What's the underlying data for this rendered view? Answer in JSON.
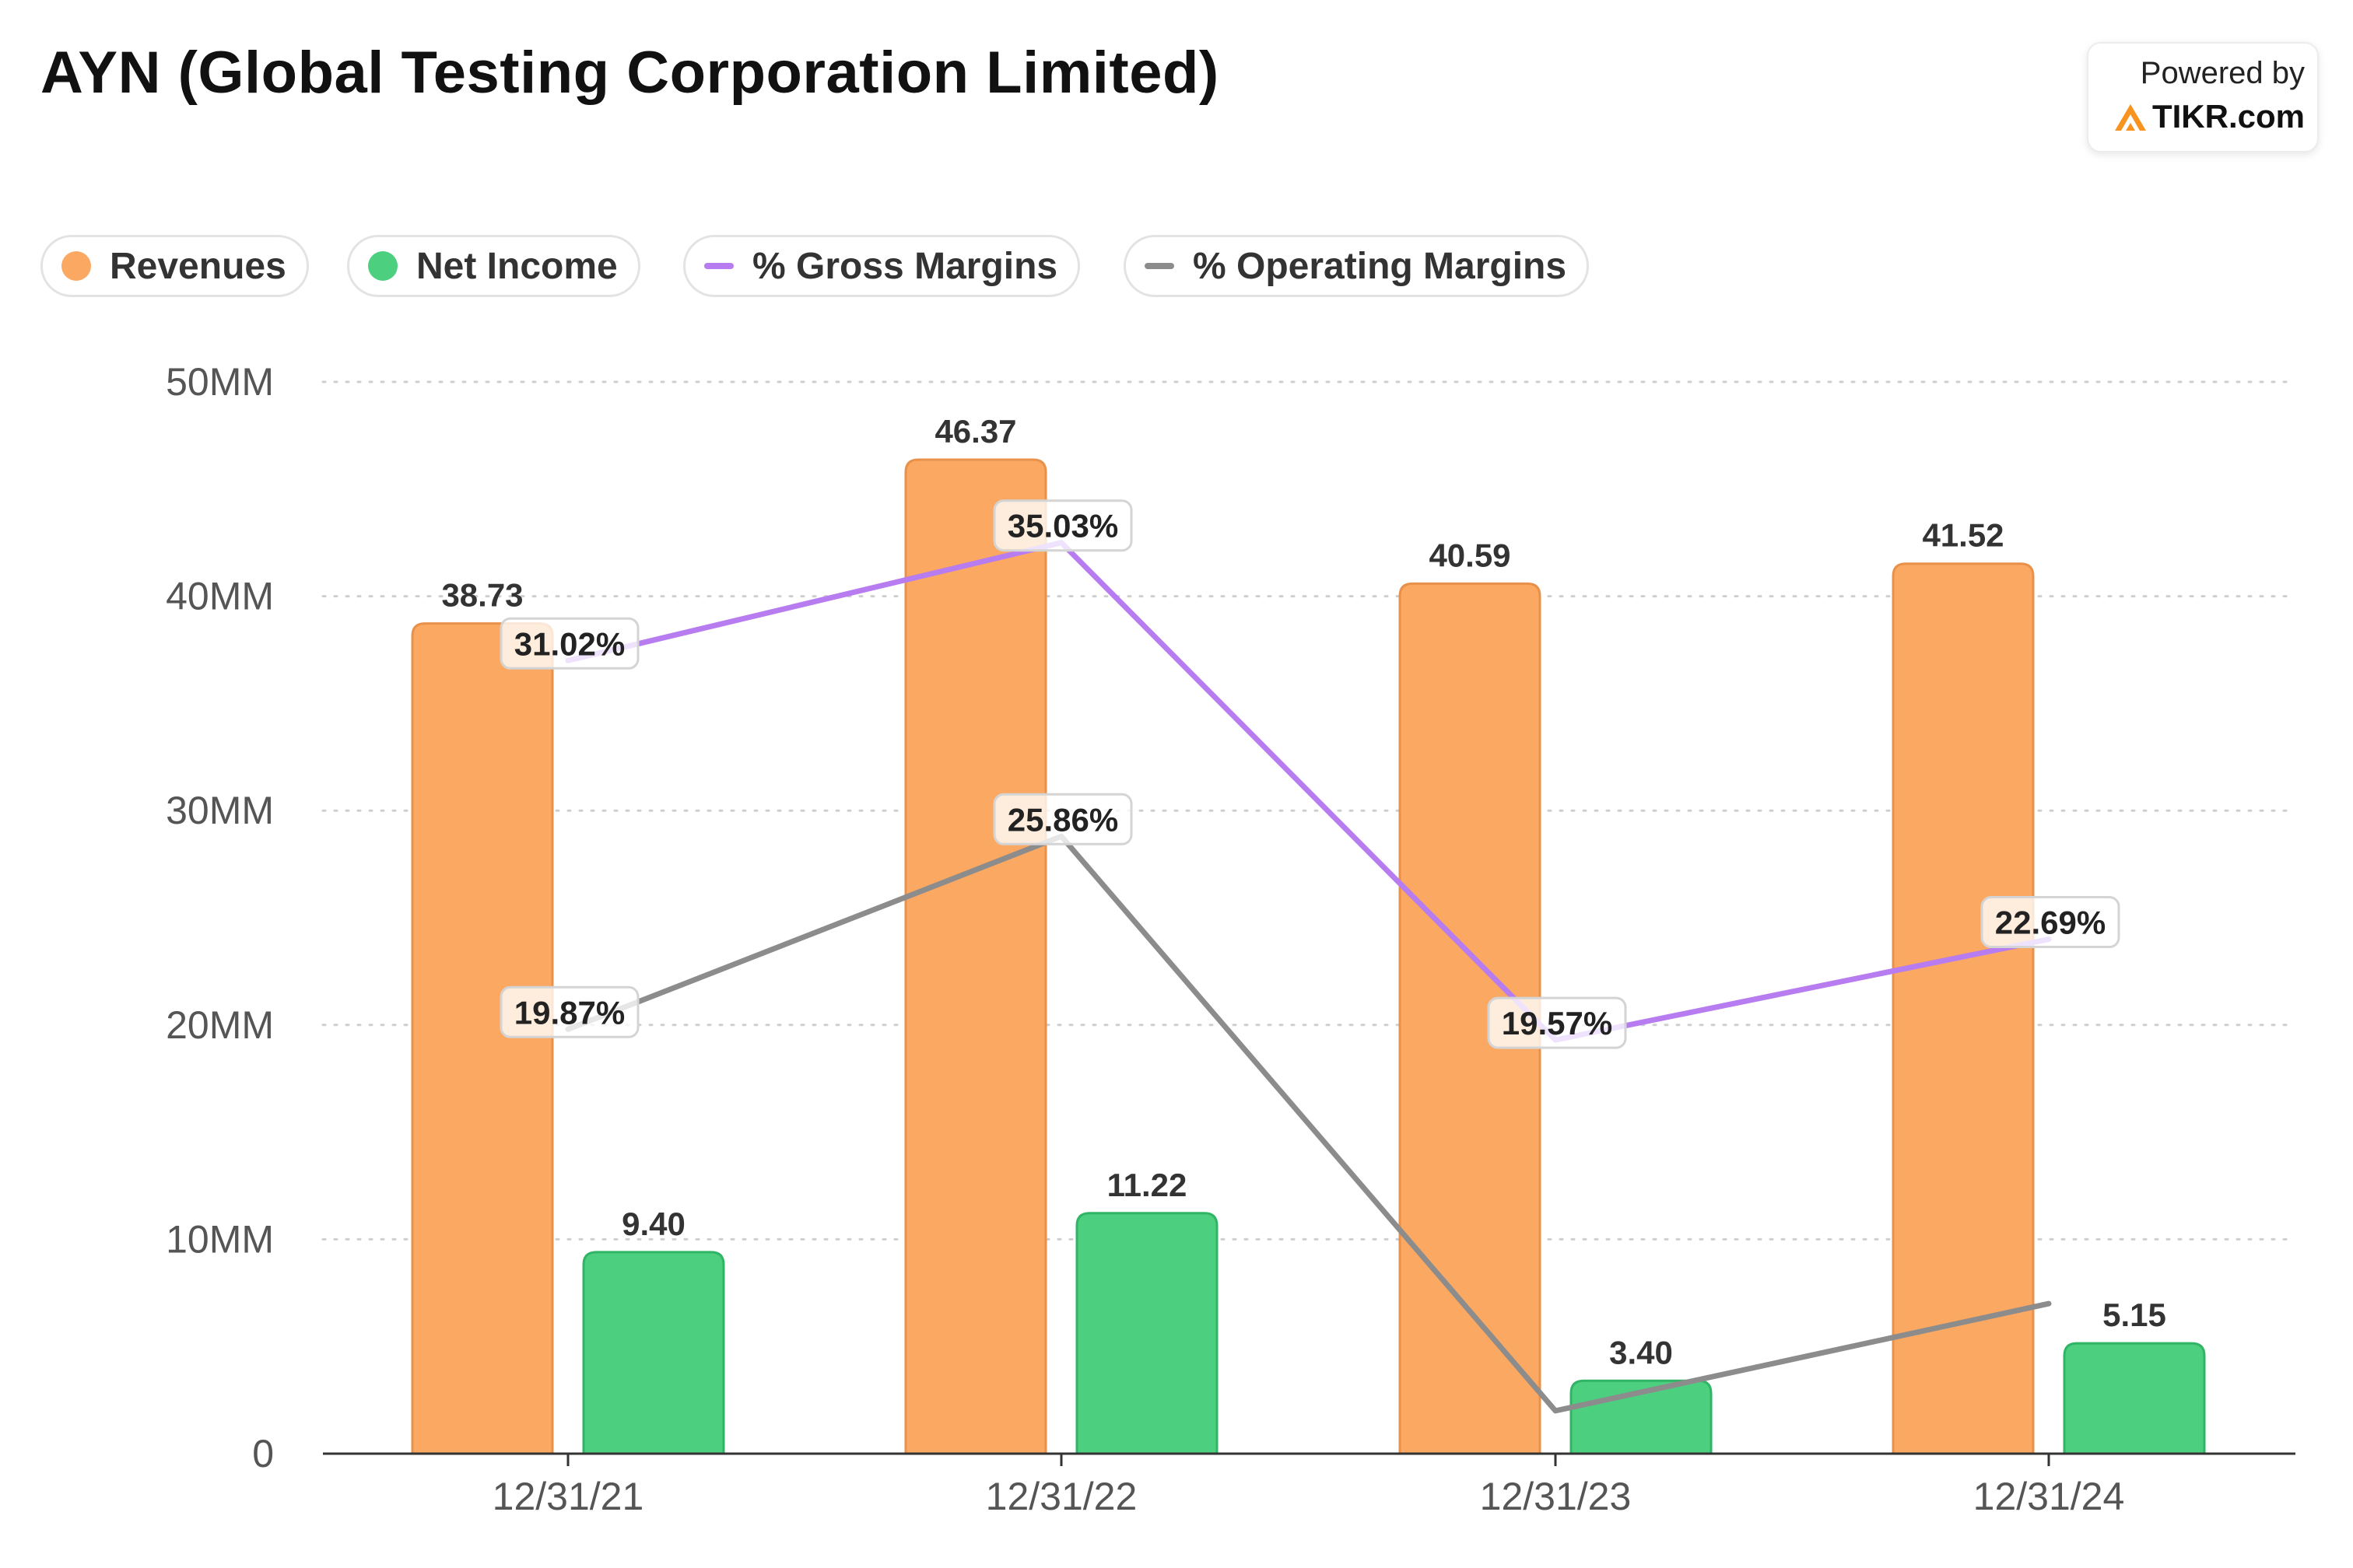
{
  "header": {
    "title": "AYN (Global Testing Corporation Limited)"
  },
  "brand": {
    "powered_by": "Powered by",
    "name": "TIKR.com",
    "logo_icon": "tikr-logo-icon",
    "logo_color": "#f7931e"
  },
  "legend": {
    "items": [
      {
        "label": "Revenues",
        "kind": "dot",
        "color": "#fba862"
      },
      {
        "label": "Net Income",
        "kind": "dot",
        "color": "#4ccf7f"
      },
      {
        "label": "% Gross Margins",
        "kind": "line",
        "color": "#b67cf0"
      },
      {
        "label": "% Operating Margins",
        "kind": "line",
        "color": "#8c8c8c"
      }
    ]
  },
  "chart_data": {
    "type": "bar",
    "title": "AYN (Global Testing Corporation Limited)",
    "categories": [
      "12/31/21",
      "12/31/22",
      "12/31/23",
      "12/31/24"
    ],
    "y_axis": {
      "ylim": [
        0,
        50
      ],
      "ticks": [
        0,
        10,
        20,
        30,
        40,
        50
      ],
      "tick_labels": [
        "0",
        "10MM",
        "20MM",
        "30MM",
        "40MM",
        "50MM"
      ],
      "grid": "dotted"
    },
    "series": [
      {
        "name": "Revenues",
        "type": "bar",
        "values": [
          38.73,
          46.37,
          40.59,
          41.52
        ],
        "labels": [
          "38.73",
          "46.37",
          "40.59",
          "41.52"
        ],
        "color": "#fba862",
        "stroke": "#e8914a"
      },
      {
        "name": "Net Income",
        "type": "bar",
        "values": [
          9.4,
          11.22,
          3.4,
          5.15
        ],
        "labels": [
          "9.40",
          "11.22",
          "3.40",
          "5.15"
        ],
        "color": "#4ccf7f",
        "stroke": "#2fb565"
      },
      {
        "name": "% Gross Margins",
        "type": "line",
        "values_pct": [
          31.02,
          35.03,
          19.57,
          22.69
        ],
        "labels": [
          "31.02%",
          "35.03%",
          "19.57%",
          "22.69%"
        ],
        "plotted_on_axis_units": [
          37.0,
          42.5,
          19.3,
          24.0
        ],
        "color": "#b67cf0"
      },
      {
        "name": "% Operating Margins",
        "type": "line",
        "values_pct": [
          19.87,
          25.86,
          null,
          null
        ],
        "labels": [
          "19.87%",
          "25.86%",
          "",
          ""
        ],
        "plotted_on_axis_units": [
          19.8,
          28.8,
          2.0,
          7.0
        ],
        "color": "#8c8c8c"
      }
    ]
  }
}
